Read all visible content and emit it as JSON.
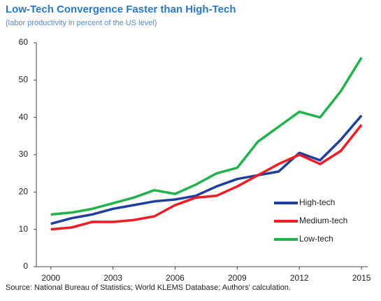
{
  "chart_data": {
    "type": "line",
    "title": "Low-Tech Convergence Faster than High-Tech",
    "subtitle": "(labor productivity in percent of the US level)",
    "source": "Source: National Bureau of Statistics; World KLEMS Database; Authors' calculation.",
    "x": [
      2000,
      2001,
      2002,
      2003,
      2004,
      2005,
      2006,
      2007,
      2008,
      2009,
      2010,
      2011,
      2012,
      2013,
      2014,
      2015
    ],
    "series": [
      {
        "name": "High-tech",
        "color": "#1f3f9e",
        "values": [
          11.5,
          13,
          14,
          15.5,
          16.5,
          17.5,
          18,
          19,
          21.5,
          23.5,
          24.5,
          25.5,
          30.5,
          28.5,
          34,
          40.5
        ]
      },
      {
        "name": "Medium-tech",
        "color": "#ee1c25",
        "values": [
          10,
          10.5,
          12,
          12,
          12.5,
          13.5,
          16.5,
          18.5,
          19,
          21.5,
          24.5,
          27.5,
          30,
          27.5,
          31,
          38
        ]
      },
      {
        "name": "Low-tech",
        "color": "#22b24c",
        "values": [
          14,
          14.5,
          15.5,
          17,
          18.5,
          20.5,
          19.5,
          22,
          25,
          26.5,
          33.5,
          37.5,
          41.5,
          40,
          47,
          56
        ]
      }
    ],
    "xlim": [
      1999.3,
      2015.3
    ],
    "xticks": [
      2000,
      2003,
      2006,
      2009,
      2012,
      2015
    ],
    "ylim": [
      0,
      60
    ],
    "yticks": [
      0,
      10,
      20,
      30,
      40,
      50,
      60
    ],
    "legend": "lower right"
  }
}
